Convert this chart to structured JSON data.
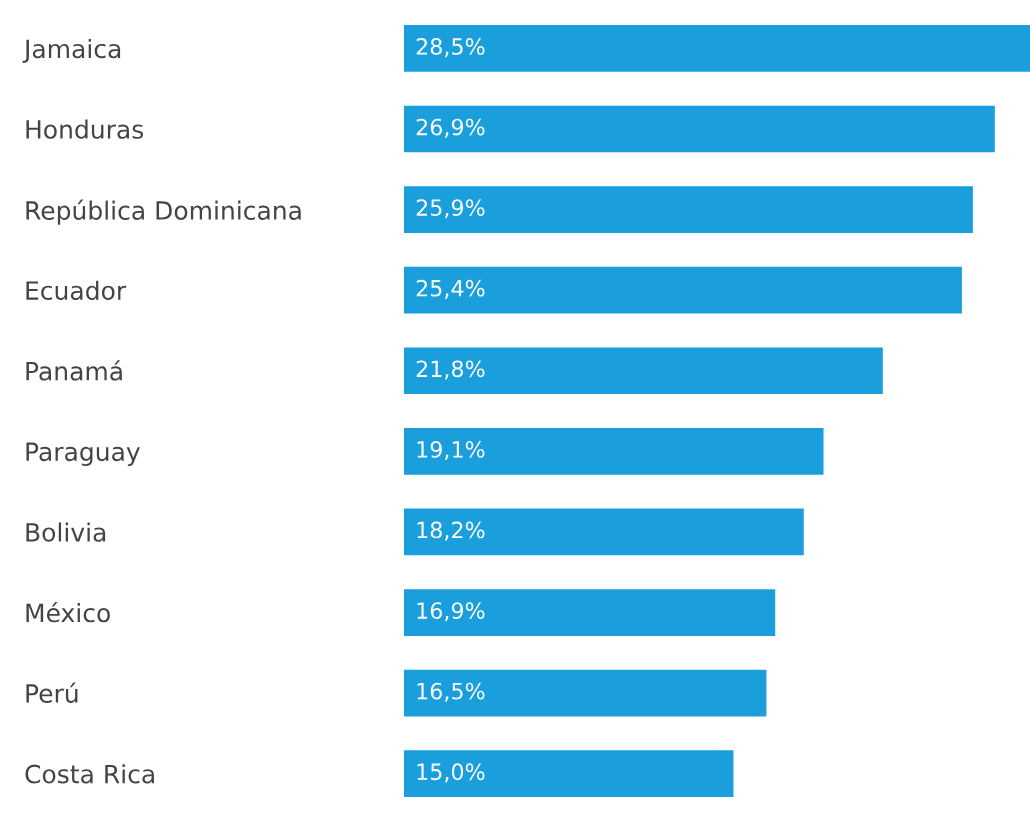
{
  "chart_data": {
    "type": "bar",
    "orientation": "horizontal",
    "categories": [
      "Jamaica",
      "Honduras",
      "República Dominicana",
      "Ecuador",
      "Panamá",
      "Paraguay",
      "Bolivia",
      "México",
      "Perú",
      "Costa Rica"
    ],
    "values": [
      28.5,
      26.9,
      25.9,
      25.4,
      21.8,
      19.1,
      18.2,
      16.9,
      16.5,
      15.0
    ],
    "value_labels": [
      "28,5%",
      "26,9%",
      "25,9%",
      "25,4%",
      "21,8%",
      "19,1%",
      "18,2%",
      "16,9%",
      "16,5%",
      "15,0%"
    ],
    "color": "#1a9fdc"
  }
}
